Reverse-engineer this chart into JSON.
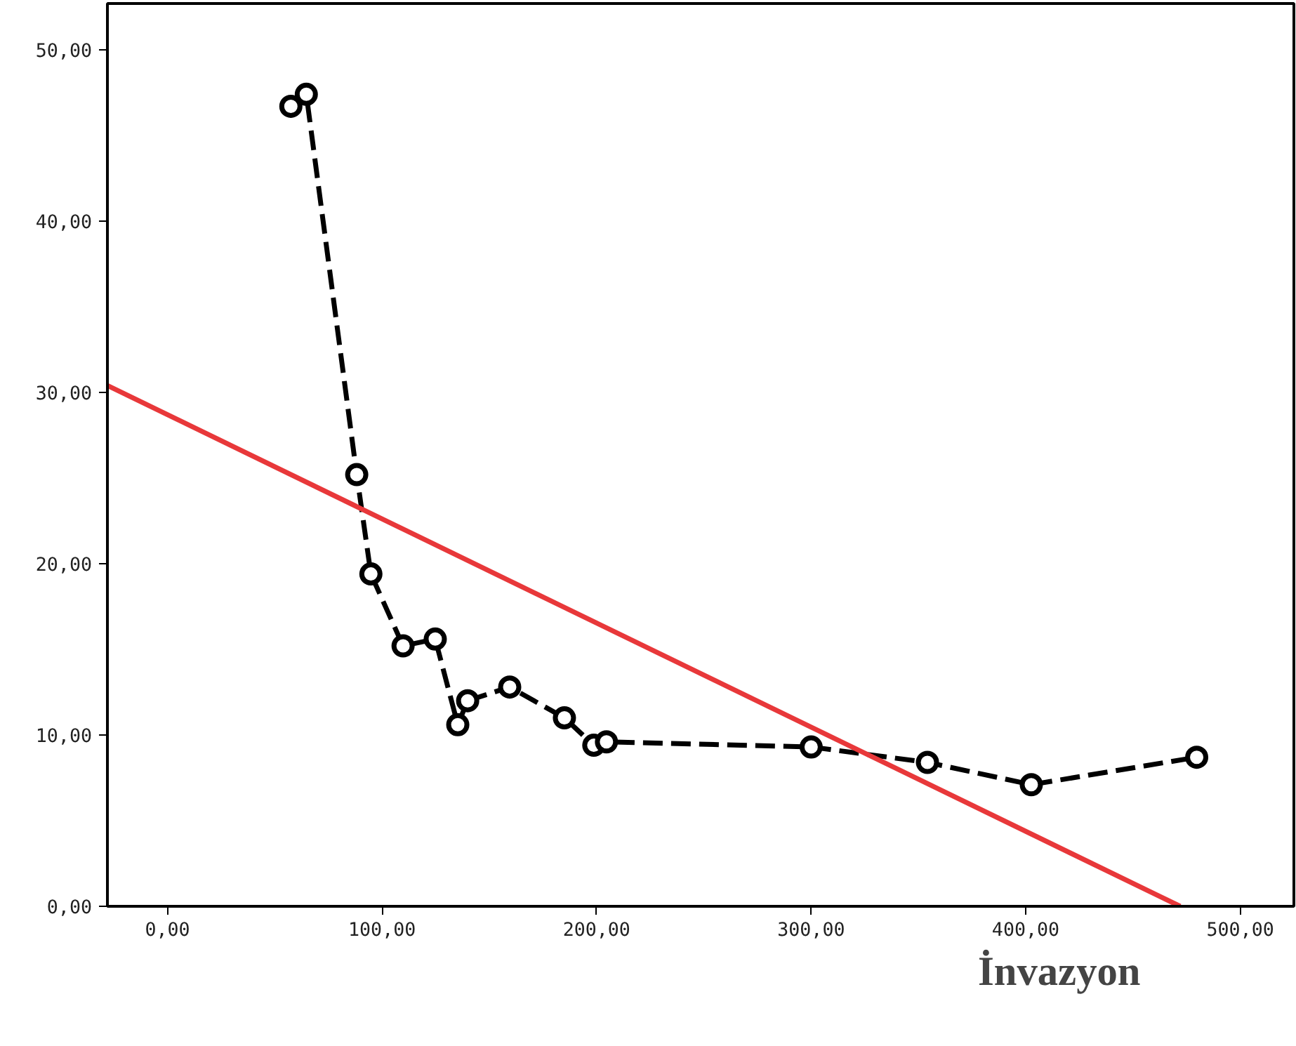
{
  "chart_data": {
    "type": "line",
    "xlabel": "İnvazyon",
    "series": [
      {
        "color": "#000000",
        "marker": "circle",
        "line_style": "dashed",
        "x": [
          57.5,
          64.7,
          88.2,
          94.8,
          109.8,
          124.8,
          135.3,
          139.9,
          159.5,
          185,
          198.7,
          204.6,
          300,
          354.2,
          402.6,
          479.7
        ],
        "values": [
          46.7,
          47.4,
          25.2,
          19.4,
          15.2,
          15.6,
          10.6,
          12.0,
          12.8,
          11.0,
          9.4,
          9.6,
          9.3,
          8.4,
          7.1,
          8.7
        ]
      },
      {
        "color": "#e8383a",
        "marker": "none",
        "line_style": "solid",
        "x": [
          -28,
          472
        ],
        "values": [
          30.4,
          0
        ]
      }
    ],
    "xlim": [
      -28,
      525
    ],
    "ylim": [
      0,
      52.7
    ],
    "xticks": [
      {
        "value": 0,
        "label": "0,00"
      },
      {
        "value": 100,
        "label": "100,00"
      },
      {
        "value": 200,
        "label": "200,00"
      },
      {
        "value": 300,
        "label": "300,00"
      },
      {
        "value": 400,
        "label": "400,00"
      },
      {
        "value": 500,
        "label": "500,00"
      }
    ],
    "yticks": [
      {
        "value": 0,
        "label": "0,00"
      },
      {
        "value": 10,
        "label": "10,00"
      },
      {
        "value": 20,
        "label": "20,00"
      },
      {
        "value": 30,
        "label": "30,00"
      },
      {
        "value": 40,
        "label": "40,00"
      },
      {
        "value": 50,
        "label": "50,00"
      }
    ],
    "tick_labels": "xy"
  }
}
